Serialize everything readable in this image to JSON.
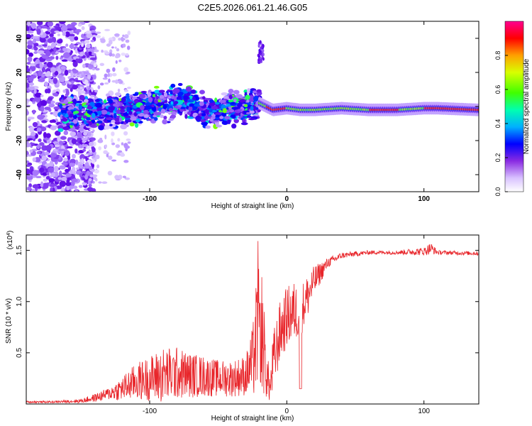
{
  "title": "C2E5.2026.061.21.46.G05",
  "chart_data": [
    {
      "type": "heatmap",
      "title": "C2E5.2026.061.21.46.G05",
      "xlabel": "Height of straight line (km)",
      "ylabel": "Frequency (Hz)",
      "xlim": [
        -190,
        140
      ],
      "ylim": [
        -50,
        50
      ],
      "x_ticks": [
        -100,
        0,
        100
      ],
      "x_tick_labels": [
        "-100",
        "0",
        "100"
      ],
      "y_ticks": [
        -40,
        -20,
        0,
        20,
        40
      ],
      "y_tick_labels": [
        "-40",
        "-20",
        "0",
        "20",
        "40"
      ],
      "colorbar": {
        "label": "Normalized spectral amplitude",
        "range": [
          0,
          1
        ],
        "ticks": [
          0.0,
          0.2,
          0.4,
          0.6,
          0.8
        ],
        "tick_labels": [
          "0.0",
          "0.2",
          "0.4",
          "0.6",
          "0.8"
        ],
        "colors": [
          "#ffffff",
          "#b48cff",
          "#5a00e6",
          "#0000ff",
          "#00c8ff",
          "#00ff80",
          "#80ff00",
          "#ffff00",
          "#ff8000",
          "#ff0000",
          "#ff00a0"
        ]
      },
      "ridge": {
        "description": "dominant frequency track",
        "x": [
          -165,
          -150,
          -130,
          -110,
          -90,
          -75,
          -60,
          -45,
          -30,
          -20,
          -10,
          0,
          10,
          20,
          40,
          60,
          80,
          100,
          110,
          140
        ],
        "freq_hz": [
          -3,
          -4,
          -2,
          -1,
          1,
          4,
          -2,
          -2,
          0,
          2,
          -2,
          -1,
          -2,
          -2,
          -1,
          -2,
          -2,
          -1,
          -1,
          -2
        ]
      }
    },
    {
      "type": "line",
      "xlabel": "Height of straight line (km)",
      "ylabel": "SNR (10 * v/v)",
      "y_multiplier_label": "(x10",
      "y_multiplier_exp": "4",
      "y_multiplier_close": ")",
      "xlim": [
        -190,
        140
      ],
      "ylim": [
        0,
        1.65
      ],
      "x_ticks": [
        -100,
        0,
        100
      ],
      "x_tick_labels": [
        "-100",
        "0",
        "100"
      ],
      "y_ticks": [
        0.5,
        1.0,
        1.5
      ],
      "y_tick_labels": [
        "0.5",
        "1.0",
        "1.5"
      ],
      "series": [
        {
          "name": "SNR",
          "color": "#e8262b",
          "envelope_x": [
            -190,
            -170,
            -150,
            -140,
            -130,
            -120,
            -110,
            -100,
            -90,
            -80,
            -70,
            -60,
            -50,
            -40,
            -30,
            -25,
            -22,
            -20,
            -18,
            -15,
            -12,
            -10,
            -5,
            0,
            5,
            10,
            15,
            20,
            30,
            40,
            60,
            80,
            100,
            105,
            110,
            140
          ],
          "envelope_mean": [
            0.02,
            0.02,
            0.03,
            0.06,
            0.1,
            0.15,
            0.22,
            0.25,
            0.28,
            0.3,
            0.28,
            0.27,
            0.25,
            0.25,
            0.28,
            0.4,
            0.65,
            0.8,
            0.7,
            0.3,
            0.15,
            0.4,
            0.7,
            0.85,
            0.9,
            0.9,
            1.05,
            1.2,
            1.38,
            1.45,
            1.48,
            1.48,
            1.49,
            1.52,
            1.48,
            1.47
          ],
          "envelope_noise": [
            0.01,
            0.01,
            0.02,
            0.04,
            0.06,
            0.12,
            0.18,
            0.22,
            0.28,
            0.26,
            0.22,
            0.2,
            0.18,
            0.18,
            0.2,
            0.35,
            0.6,
            0.55,
            0.6,
            0.25,
            0.15,
            0.3,
            0.3,
            0.3,
            0.3,
            0.25,
            0.22,
            0.15,
            0.05,
            0.03,
            0.02,
            0.02,
            0.04,
            0.06,
            0.02,
            0.02
          ]
        }
      ]
    }
  ]
}
